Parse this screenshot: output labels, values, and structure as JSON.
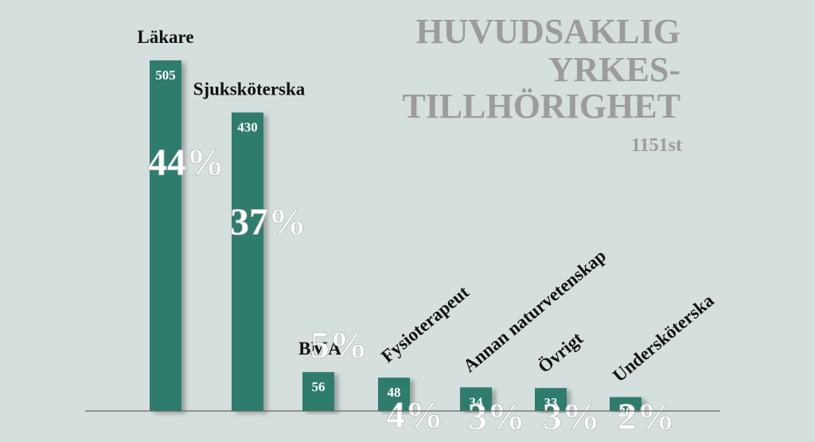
{
  "chart_data": {
    "type": "bar",
    "title_lines": [
      "HUVUDSAKLIG",
      "YRKES-",
      "TILLHÖRIGHET"
    ],
    "total_label": "1151st",
    "categories": [
      "Läkare",
      "Sjuksköterska",
      "BMA",
      "Fysioterapeut",
      "Annan naturvetenskap",
      "Övrigt",
      "Undersköterska"
    ],
    "values": [
      505,
      430,
      56,
      48,
      34,
      33,
      20
    ],
    "value_labels": [
      "505",
      "430",
      "56",
      "48",
      "34",
      "33",
      "20"
    ],
    "percent_labels": [
      "44%",
      "37%",
      "5%",
      "4%",
      "3%",
      "3%",
      "2%"
    ],
    "ylim": [
      0,
      505
    ],
    "grid": false,
    "legend": "none",
    "colors": {
      "bar": "#2e7b6c",
      "background": "#d5dfdd",
      "title": "#9c9c9c",
      "axis": "#666666"
    }
  }
}
